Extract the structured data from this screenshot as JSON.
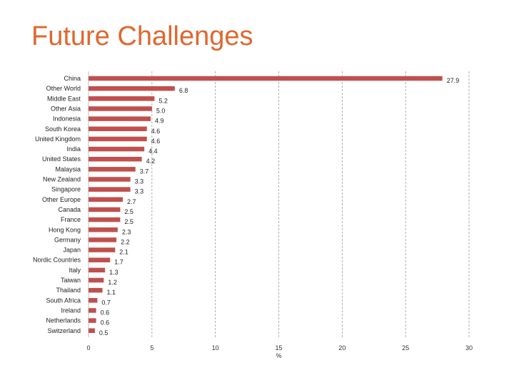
{
  "title": "Future Challenges",
  "colors": {
    "title": "#e0672e",
    "bar": "#c0504d",
    "grid": "#9a9a9a"
  },
  "chart_data": {
    "type": "bar",
    "orientation": "horizontal",
    "categories": [
      "China",
      "Other World",
      "Middle East",
      "Other Asia",
      "Indonesia",
      "South Korea",
      "United Kingdom",
      "India",
      "United States",
      "Malaysia",
      "New Zealand",
      "Singapore",
      "Other Europe",
      "Canada",
      "France",
      "Hong Kong",
      "Germany",
      "Japan",
      "Nordic Countries",
      "Italy",
      "Taiwan",
      "Thailand",
      "South Africa",
      "Ireland",
      "Netherlands",
      "Switzerland"
    ],
    "values": [
      27.9,
      6.8,
      5.2,
      5.0,
      4.9,
      4.6,
      4.6,
      4.4,
      4.2,
      3.7,
      3.3,
      3.3,
      2.7,
      2.5,
      2.5,
      2.3,
      2.2,
      2.1,
      1.7,
      1.3,
      1.2,
      1.1,
      0.7,
      0.6,
      0.6,
      0.5
    ],
    "value_labels": [
      "27.9",
      "6.8",
      "5.2",
      "5.0",
      "4.9",
      "4.6",
      "4.6",
      "4.4",
      "4.2",
      "3.7",
      "3.3",
      "3.3",
      "2.7",
      "2.5",
      "2.5",
      "2.3",
      "2.2",
      "2.1",
      "1.7",
      "1.3",
      "1.2",
      "1.1",
      "0.7",
      "0.6",
      "0.6",
      "0.5"
    ],
    "xlim": [
      0,
      30
    ],
    "xticks": [
      "0",
      "5",
      "10",
      "15",
      "20",
      "25",
      "30"
    ],
    "xlabel": "%",
    "grid": "vertical-dashed"
  }
}
